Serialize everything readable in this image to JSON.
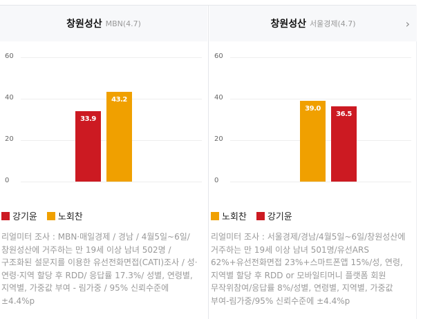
{
  "colors": {
    "kang": "#cc1a22",
    "noh": "#f0a000"
  },
  "panels": [
    {
      "title": "창원성산",
      "source": "MBN(4.7)",
      "chart_data": {
        "type": "bar",
        "yticks": [
          "60",
          "40",
          "20",
          "0"
        ],
        "ylim": [
          0,
          60
        ],
        "series": [
          {
            "name": "강기윤",
            "value": 33.9,
            "label": "33.9",
            "color": "#cc1a22"
          },
          {
            "name": "노회찬",
            "value": 43.2,
            "label": "43.2",
            "color": "#f0a000"
          }
        ]
      },
      "legend": [
        {
          "label": "강기윤",
          "color": "#cc1a22"
        },
        {
          "label": "노회찬",
          "color": "#f0a000"
        }
      ],
      "note": "리얼미터 조사 : MBN·매일경제 / 경남 / 4월5일~6일/ 창원성산에 거주하는 만 19세 이상 남녀 502명 / 구조화된 설문지를 이용한 유선전화면접(CATI)조사 / 성·연령·지역 할당 후 RDD/ 응답률 17.3%/ 성별, 연령별, 지역별, 가중값 부여 - 림가중 / 95% 신뢰수준에 ±4.4%p"
    },
    {
      "title": "창원성산",
      "source": "서울경제(4.7)",
      "chart_data": {
        "type": "bar",
        "yticks": [
          "60",
          "40",
          "20",
          "0"
        ],
        "ylim": [
          0,
          60
        ],
        "series": [
          {
            "name": "노회찬",
            "value": 39.0,
            "label": "39.0",
            "color": "#f0a000"
          },
          {
            "name": "강기윤",
            "value": 36.5,
            "label": "36.5",
            "color": "#cc1a22"
          }
        ]
      },
      "legend": [
        {
          "label": "노회찬",
          "color": "#f0a000"
        },
        {
          "label": "강기윤",
          "color": "#cc1a22"
        }
      ],
      "note": "리얼미터 조사 : 서울경제/경남/4월5일~6일/창원성산에 거주하는 만 19세 이상 남녀 501명/유선ARS 62%+유선전화면접 23%+스마트폰앱 15%/성, 연령, 지역별 할당 후 RDD or 모바일티머니 플랫폼 회원 무작위참여/응답률 8%/성별, 연령별, 지역별, 가중값 부여-림가중/95% 신뢰수준에 ±4.4%p"
    }
  ],
  "next_icon": "chevron-right-icon"
}
